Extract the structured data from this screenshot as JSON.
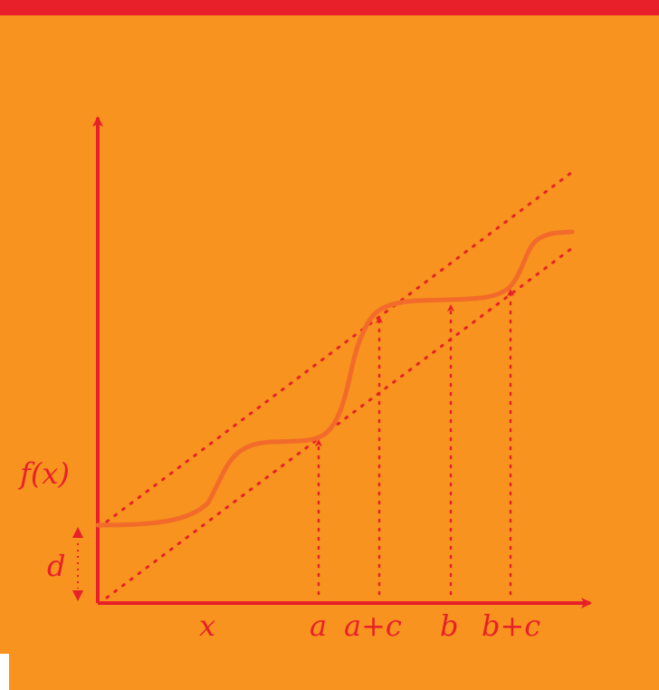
{
  "diagram": {
    "colors": {
      "background": "#f7931e",
      "top_bar": "#e8202a",
      "axis": "#e8202a",
      "curve": "#f26b2b",
      "dotted": "#e8202a",
      "labels": "#e8202a"
    },
    "labels": {
      "y_axis": "f(x)",
      "offset": "d",
      "x_var": "x",
      "a": "a",
      "a_plus_c": "a+c",
      "b": "b",
      "b_plus_c": "b+c"
    }
  }
}
